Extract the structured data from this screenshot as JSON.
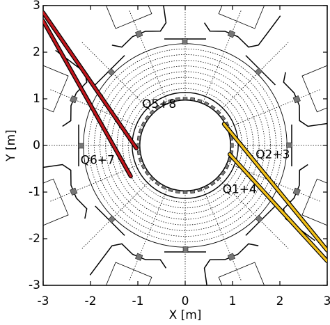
{
  "chart_data": {
    "type": "line",
    "x_label": "X [m]",
    "y_label": "Y [m]",
    "xlim": [
      -3,
      3
    ],
    "ylim": [
      -3,
      3
    ],
    "xticks": [
      -3,
      -2,
      -1,
      0,
      1,
      2,
      3
    ],
    "yticks": [
      -3,
      -2,
      -1,
      0,
      1,
      2,
      3
    ],
    "annotations": [
      "Q5+8",
      "Q6+7",
      "Q2+3",
      "Q1+4"
    ],
    "series": [
      {
        "color": "#c0161c",
        "x": [
          -3,
          -1.03
        ],
        "values": [
          2.85,
          -0.06
        ]
      },
      {
        "color": "#c0161c",
        "x": [
          -3,
          -1.15
        ],
        "values": [
          2.67,
          -0.66
        ]
      },
      {
        "color": "#f2c019",
        "x": [
          0.82,
          3
        ],
        "values": [
          0.46,
          -2.25
        ]
      },
      {
        "color": "#f2c019",
        "x": [
          0.94,
          3
        ],
        "values": [
          -0.19,
          -2.48
        ]
      }
    ]
  }
}
